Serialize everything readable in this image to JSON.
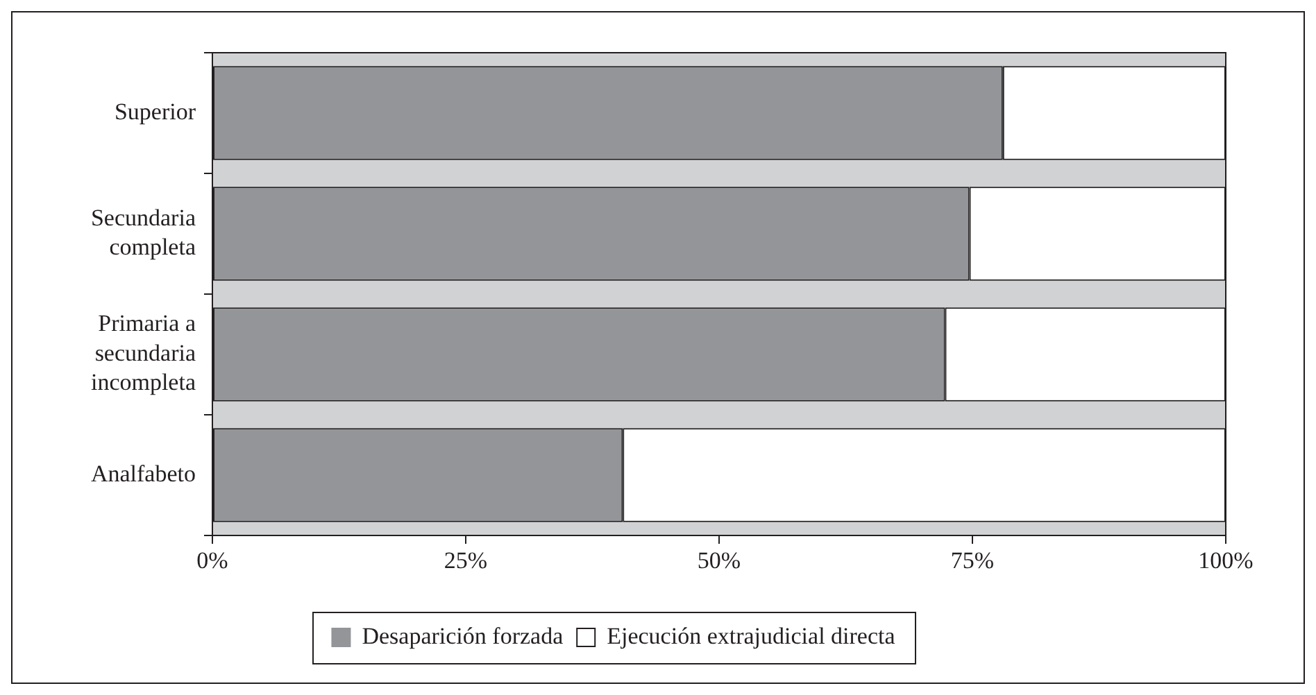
{
  "chart_data": {
    "type": "bar",
    "orientation": "horizontal",
    "stacked": true,
    "categories": [
      "Superior",
      "Secundaria completa",
      "Primaria a secundaria incompleta",
      "Analfabeto"
    ],
    "series": [
      {
        "name": "Desaparición forzada",
        "color": "#939598",
        "values": [
          78,
          74.7,
          72.3,
          40.5
        ]
      },
      {
        "name": "Ejecución extrajudicial directa",
        "color": "#ffffff",
        "values": [
          22,
          25.3,
          27.7,
          59.5
        ]
      }
    ],
    "xlim": [
      0,
      100
    ],
    "xticks": [
      {
        "value": 0,
        "label": "0%"
      },
      {
        "value": 25,
        "label": "25%"
      },
      {
        "value": 50,
        "label": "50%"
      },
      {
        "value": 75,
        "label": "75%"
      },
      {
        "value": 100,
        "label": "100%"
      }
    ],
    "grid": false,
    "legend": "bottom"
  }
}
